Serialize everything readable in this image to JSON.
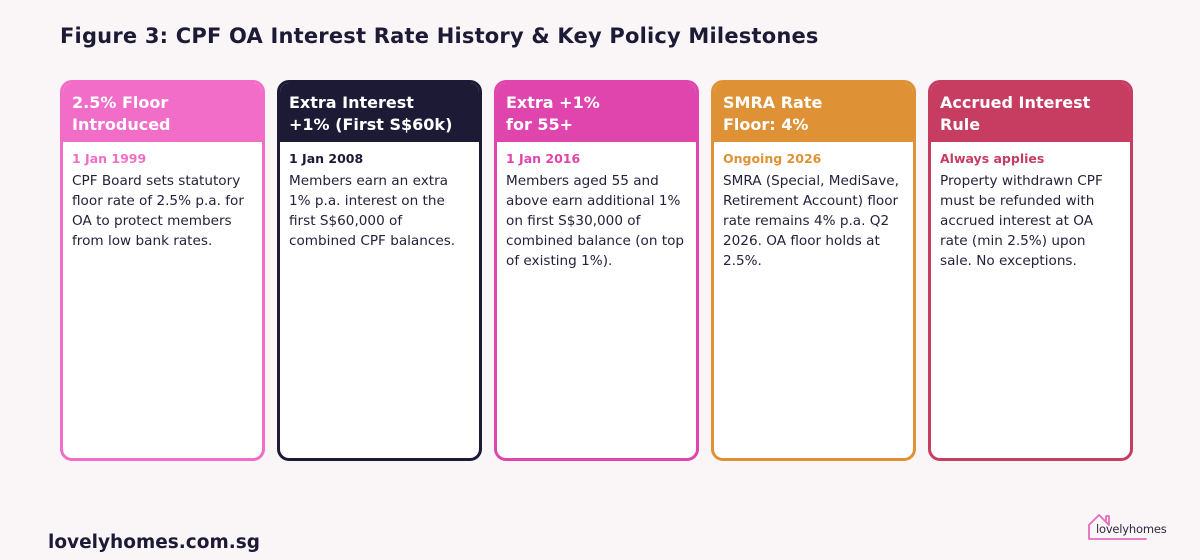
{
  "figure": {
    "title": "Figure 3: CPF OA Interest Rate History & Key Policy Milestones"
  },
  "cards": [
    {
      "title": "2.5% Floor\nIntroduced",
      "date": "1 Jan 1999",
      "text": "CPF Board sets statutory floor rate of 2.5% p.a. for OA to protect members from low bank rates.",
      "color": "#f26dc8"
    },
    {
      "title": "Extra Interest\n+1% (First S$60k)",
      "date": "1 Jan 2008",
      "text": "Members earn an extra 1% p.a. interest on the first S$60,000 of combined CPF balances.",
      "color": "#1d1a36"
    },
    {
      "title": "Extra +1%\nfor 55+",
      "date": "1 Jan 2016",
      "text": "Members aged 55 and above earn additional 1% on first S$30,000 of combined balance (on top of existing 1%).",
      "color": "#e044ad"
    },
    {
      "title": "SMRA Rate\nFloor: 4%",
      "date": "Ongoing 2026",
      "text": "SMRA (Special, MediSave, Retirement Account) floor rate remains 4% p.a. Q2 2026. OA floor holds at 2.5%.",
      "color": "#de9235"
    },
    {
      "title": "Accrued Interest\nRule",
      "date": "Always applies",
      "text": "Property withdrawn CPF must be refunded with accrued interest at OA rate (min 2.5%) upon sale. No exceptions.",
      "color": "#c73d62"
    }
  ],
  "footer": {
    "site": "lovelyhomes.com.sg"
  },
  "logo": {
    "text": "lovelyhomes",
    "icon": "house-outline-icon",
    "color": "#e66dbe"
  }
}
